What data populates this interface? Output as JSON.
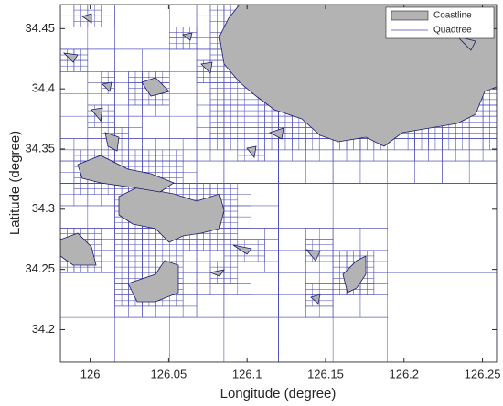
{
  "chart_data": {
    "type": "map",
    "xlabel": "Longitude (degree)",
    "ylabel": "Latitude (degree)",
    "xlim": [
      125.981,
      126.259
    ],
    "ylim": [
      34.173,
      34.47
    ],
    "xticks": [
      126,
      126.05,
      126.1,
      126.15,
      126.2,
      126.25
    ],
    "yticks": [
      34.2,
      34.25,
      34.3,
      34.35,
      34.4,
      34.45
    ],
    "legend_position": "upper right",
    "legend": [
      {
        "name": "Coastline",
        "color": "#b3b3b3"
      },
      {
        "name": "Quadtree",
        "color": "#4a4ab8"
      }
    ]
  }
}
